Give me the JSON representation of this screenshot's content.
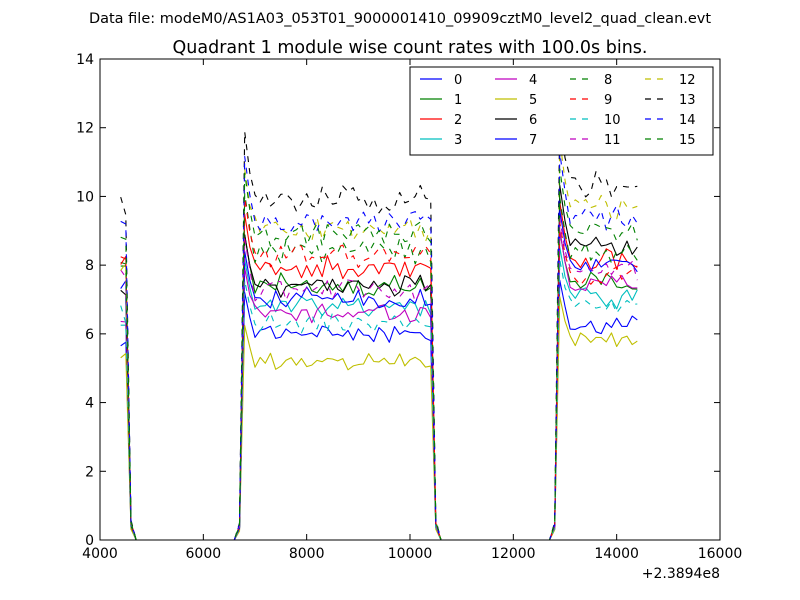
{
  "chart_data": {
    "type": "line",
    "suptitle": "Data file: modeM0/AS1A03_053T01_9000001410_09909cztM0_level2_quad_clean.evt",
    "title": "Quadrant 1 module wise count rates with 100.0s bins.",
    "xlabel": "",
    "ylabel": "",
    "xlim": [
      4000,
      16000
    ],
    "ylim": [
      0,
      14
    ],
    "x_offset_label": "+2.3894e8",
    "xticks": [
      4000,
      6000,
      8000,
      10000,
      12000,
      14000,
      16000
    ],
    "xtick_labels": [
      "4000",
      "6000",
      "8000",
      "10000",
      "12000",
      "14000",
      "16000"
    ],
    "yticks": [
      0,
      2,
      4,
      6,
      8,
      10,
      12,
      14
    ],
    "ytick_labels": [
      "0",
      "2",
      "4",
      "6",
      "8",
      "10",
      "12",
      "14"
    ],
    "grid": false,
    "legend_position": "top-right",
    "legend_columns": 4,
    "time_bins": {
      "start": 4400,
      "step": 100,
      "active_segments": [
        [
          4400,
          4500
        ],
        [
          6800,
          10400
        ],
        [
          12900,
          14400
        ]
      ]
    },
    "series": [
      {
        "name": "0",
        "color": "#0000ff",
        "style": "solid",
        "segment_levels": [
          5.8,
          6.0,
          6.3
        ]
      },
      {
        "name": "1",
        "color": "#008000",
        "style": "solid",
        "segment_levels": [
          7.9,
          7.4,
          7.5
        ]
      },
      {
        "name": "2",
        "color": "#ff0000",
        "style": "solid",
        "segment_levels": [
          8.3,
          7.9,
          8.2
        ]
      },
      {
        "name": "3",
        "color": "#00bfbf",
        "style": "solid",
        "segment_levels": [
          6.3,
          6.8,
          7.1
        ]
      },
      {
        "name": "4",
        "color": "#bf00bf",
        "style": "solid",
        "segment_levels": [
          6.4,
          6.6,
          7.5
        ]
      },
      {
        "name": "5",
        "color": "#bfbf00",
        "style": "solid",
        "segment_levels": [
          5.2,
          5.2,
          5.9
        ]
      },
      {
        "name": "6",
        "color": "#000000",
        "style": "solid",
        "segment_levels": [
          7.1,
          7.4,
          8.6
        ]
      },
      {
        "name": "7",
        "color": "#0000ff",
        "style": "solid",
        "segment_levels": [
          7.5,
          7.0,
          8.0
        ]
      },
      {
        "name": "8",
        "color": "#008000",
        "style": "dashed",
        "segment_levels": [
          8.0,
          8.4,
          8.3
        ]
      },
      {
        "name": "9",
        "color": "#ff0000",
        "style": "dashed",
        "segment_levels": [
          8.2,
          8.3,
          7.7
        ]
      },
      {
        "name": "10",
        "color": "#00bfbf",
        "style": "dashed",
        "segment_levels": [
          6.5,
          6.3,
          6.8
        ]
      },
      {
        "name": "11",
        "color": "#bf00bf",
        "style": "dashed",
        "segment_levels": [
          7.7,
          7.3,
          7.8
        ]
      },
      {
        "name": "12",
        "color": "#bfbf00",
        "style": "dashed",
        "segment_levels": [
          8.1,
          9.0,
          9.7
        ]
      },
      {
        "name": "13",
        "color": "#000000",
        "style": "dashed",
        "segment_levels": [
          9.6,
          9.9,
          10.3
        ]
      },
      {
        "name": "14",
        "color": "#0000ff",
        "style": "dashed",
        "segment_levels": [
          9.0,
          9.3,
          9.4
        ]
      },
      {
        "name": "15",
        "color": "#008000",
        "style": "dashed",
        "segment_levels": [
          8.9,
          8.9,
          9.0
        ]
      }
    ]
  }
}
